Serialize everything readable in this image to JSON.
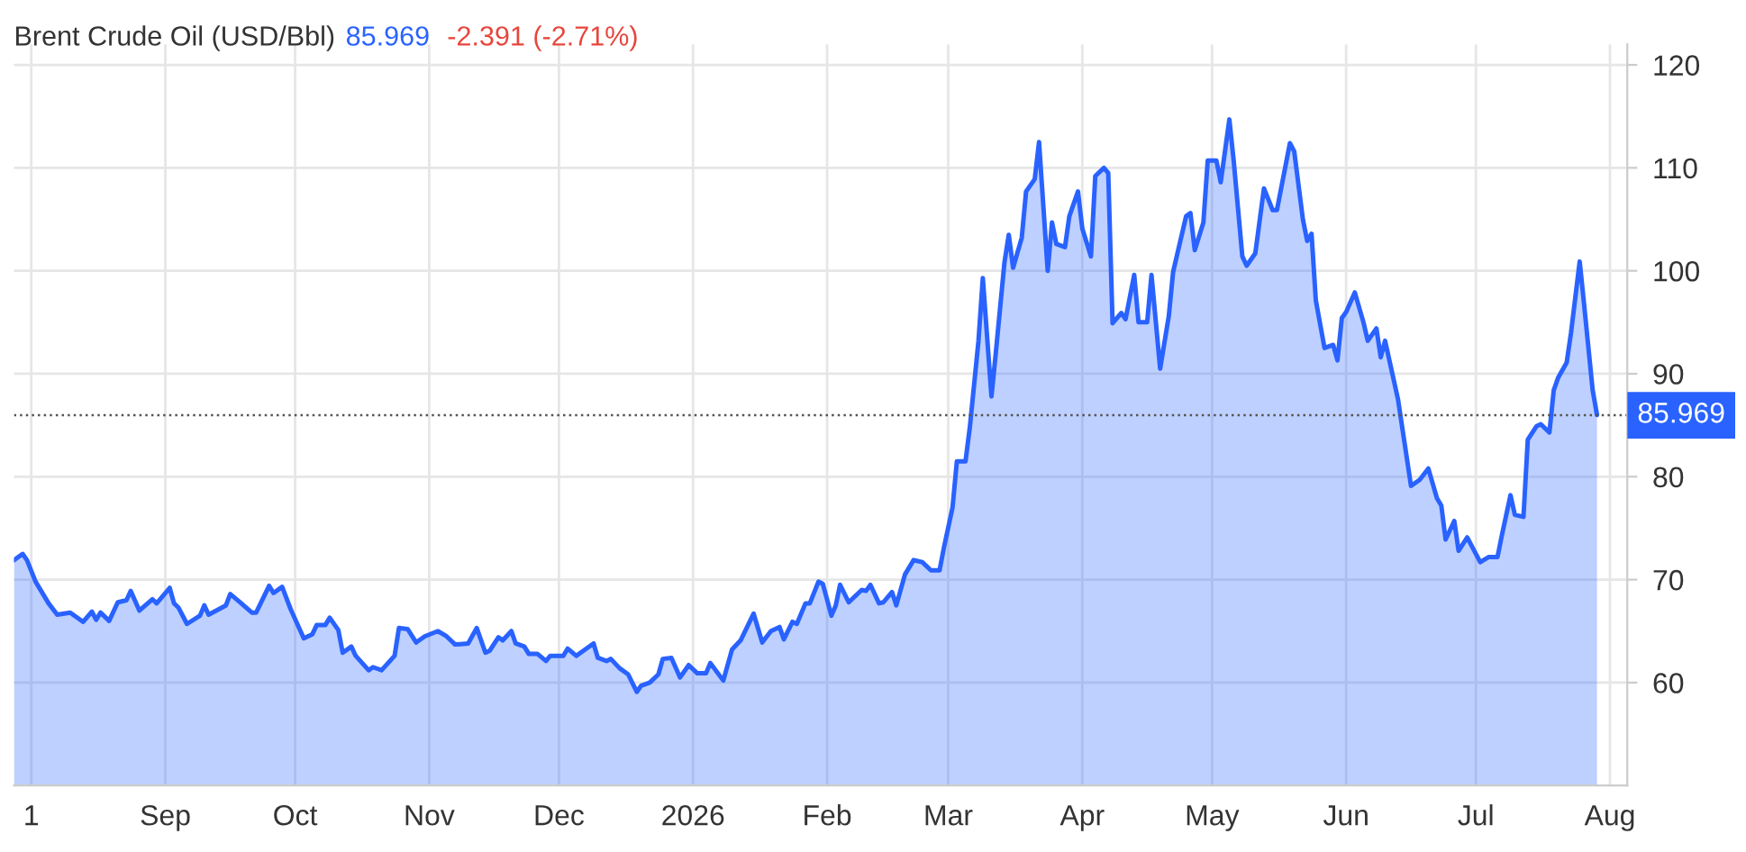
{
  "chart_data": {
    "type": "area",
    "title": "Brent Crude Oil (USD/Bbl)",
    "annotations": [
      "85.969",
      "-2.391 (-2.71%)"
    ],
    "x": [
      "2025-07-28",
      "2025-07-30",
      "2025-07-31",
      "2025-08-02",
      "2025-08-05",
      "2025-08-07",
      "2025-08-10",
      "2025-08-13",
      "2025-08-15",
      "2025-08-16",
      "2025-08-17",
      "2025-08-19",
      "2025-08-21",
      "2025-08-23",
      "2025-08-24",
      "2025-08-26",
      "2025-08-29",
      "2025-08-30",
      "2025-09-02",
      "2025-09-03",
      "2025-09-04",
      "2025-09-06",
      "2025-09-09",
      "2025-09-10",
      "2025-09-11",
      "2025-09-15",
      "2025-09-16",
      "2025-09-18",
      "2025-09-21",
      "2025-09-22",
      "2025-09-25",
      "2025-09-26",
      "2025-09-28",
      "2025-09-30",
      "2025-10-03",
      "2025-10-05",
      "2025-10-06",
      "2025-10-08",
      "2025-10-09",
      "2025-10-11",
      "2025-10-12",
      "2025-10-14",
      "2025-10-15",
      "2025-10-18",
      "2025-10-19",
      "2025-10-21",
      "2025-10-24",
      "2025-10-25",
      "2025-10-27",
      "2025-10-29",
      "2025-10-31",
      "2025-11-03",
      "2025-11-05",
      "2025-11-07",
      "2025-11-10",
      "2025-11-12",
      "2025-11-14",
      "2025-11-15",
      "2025-11-17",
      "2025-11-18",
      "2025-11-20",
      "2025-11-21",
      "2025-11-23",
      "2025-11-24",
      "2025-11-26",
      "2025-11-28",
      "2025-11-29",
      "2025-12-02",
      "2025-12-03",
      "2025-12-05",
      "2025-12-06",
      "2025-12-09",
      "2025-12-10",
      "2025-12-12",
      "2025-12-13",
      "2025-12-15",
      "2025-12-17",
      "2025-12-19",
      "2025-12-20",
      "2025-12-22",
      "2025-12-24",
      "2025-12-25",
      "2025-12-27",
      "2025-12-29",
      "2025-12-31",
      "2026-01-02",
      "2026-01-04",
      "2026-01-05",
      "2026-01-08",
      "2026-01-10",
      "2026-01-12",
      "2026-01-15",
      "2026-01-17",
      "2026-01-19",
      "2026-01-21",
      "2026-01-22",
      "2026-01-24",
      "2026-01-25",
      "2026-01-27",
      "2026-01-28",
      "2026-01-30",
      "2026-01-31",
      "2026-02-02",
      "2026-02-03",
      "2026-02-04",
      "2026-02-06",
      "2026-02-09",
      "2026-02-10",
      "2026-02-11",
      "2026-02-13",
      "2026-02-14",
      "2026-02-16",
      "2026-02-17",
      "2026-02-19",
      "2026-02-21",
      "2026-02-23",
      "2026-02-25",
      "2026-02-27",
      "2026-02-28",
      "2026-03-02",
      "2026-03-03",
      "2026-03-05",
      "2026-03-06",
      "2026-03-08",
      "2026-03-09",
      "2026-03-11",
      "2026-03-12",
      "2026-03-14",
      "2026-03-15",
      "2026-03-16",
      "2026-03-18",
      "2026-03-19",
      "2026-03-21",
      "2026-03-22",
      "2026-03-24",
      "2026-03-25",
      "2026-03-26",
      "2026-03-28",
      "2026-03-29",
      "2026-03-31",
      "2026-04-01",
      "2026-04-03",
      "2026-04-04",
      "2026-04-06",
      "2026-04-07",
      "2026-04-08",
      "2026-04-10",
      "2026-04-11",
      "2026-04-13",
      "2026-04-14",
      "2026-04-16",
      "2026-04-17",
      "2026-04-19",
      "2026-04-21",
      "2026-04-22",
      "2026-04-25",
      "2026-04-26",
      "2026-04-27",
      "2026-04-29",
      "2026-04-30",
      "2026-05-02",
      "2026-05-03",
      "2026-05-05",
      "2026-05-06",
      "2026-05-08",
      "2026-05-09",
      "2026-05-11",
      "2026-05-13",
      "2026-05-15",
      "2026-05-16",
      "2026-05-19",
      "2026-05-20",
      "2026-05-22",
      "2026-05-23",
      "2026-05-24",
      "2026-05-25",
      "2026-05-27",
      "2026-05-29",
      "2026-05-30",
      "2026-05-31",
      "2026-06-01",
      "2026-06-03",
      "2026-06-05",
      "2026-06-06",
      "2026-06-08",
      "2026-06-09",
      "2026-06-10",
      "2026-06-13",
      "2026-06-16",
      "2026-06-18",
      "2026-06-20",
      "2026-06-22",
      "2026-06-23",
      "2026-06-24",
      "2026-06-26",
      "2026-06-27",
      "2026-06-29",
      "2026-06-30",
      "2026-07-02",
      "2026-07-04",
      "2026-07-06",
      "2026-07-07",
      "2026-07-09",
      "2026-07-10",
      "2026-07-12",
      "2026-07-13",
      "2026-07-15",
      "2026-07-16",
      "2026-07-18",
      "2026-07-19",
      "2026-07-20",
      "2026-07-22",
      "2026-07-23",
      "2026-07-25",
      "2026-07-26",
      "2026-07-28",
      "2026-07-29"
    ],
    "series": [
      {
        "color": "#2962ff",
        "values": [
          71.9,
          72.5,
          71.9,
          69.8,
          67.7,
          66.6,
          66.8,
          65.9,
          66.9,
          66.1,
          66.8,
          66.0,
          67.8,
          68.0,
          68.9,
          67.0,
          68.1,
          67.7,
          69.2,
          67.7,
          67.3,
          65.7,
          66.5,
          67.5,
          66.6,
          67.5,
          68.6,
          67.9,
          66.8,
          66.8,
          69.4,
          68.7,
          69.3,
          67.1,
          64.3,
          64.7,
          65.6,
          65.6,
          66.3,
          65.1,
          62.9,
          63.5,
          62.6,
          61.2,
          61.5,
          61.2,
          62.6,
          65.3,
          65.2,
          63.9,
          64.5,
          65.0,
          64.5,
          63.7,
          63.8,
          65.3,
          62.9,
          63.1,
          64.4,
          64.1,
          65.0,
          63.8,
          63.5,
          62.8,
          62.8,
          62.1,
          62.6,
          62.6,
          63.3,
          62.6,
          62.9,
          63.8,
          62.4,
          62.1,
          62.3,
          61.4,
          60.8,
          59.1,
          59.7,
          60.0,
          60.8,
          62.3,
          62.4,
          60.5,
          61.7,
          60.9,
          60.9,
          61.9,
          60.2,
          63.2,
          64.1,
          66.7,
          63.9,
          65.0,
          65.4,
          64.2,
          65.9,
          65.7,
          67.7,
          67.7,
          69.8,
          69.6,
          66.5,
          67.5,
          69.5,
          67.8,
          69.0,
          68.9,
          69.5,
          67.7,
          67.8,
          68.8,
          67.5,
          70.5,
          71.9,
          71.7,
          70.9,
          70.9,
          73.1,
          77.0,
          81.5,
          81.5,
          84.8,
          93.2,
          99.3,
          87.8,
          92.0,
          100.8,
          103.5,
          100.3,
          103.2,
          107.7,
          108.9,
          112.5,
          100.0,
          104.7,
          102.6,
          102.3,
          105.3,
          107.7,
          104.1,
          101.4,
          109.2,
          110.0,
          109.5,
          94.9,
          95.9,
          95.3,
          99.6,
          95.0,
          95.0,
          99.6,
          90.5,
          95.6,
          99.9,
          105.3,
          105.6,
          102.0,
          104.7,
          110.7,
          110.7,
          108.6,
          114.7,
          110.7,
          101.4,
          100.5,
          101.7,
          108.0,
          105.9,
          105.9,
          112.4,
          111.6,
          105.0,
          102.9,
          103.6,
          97.1,
          92.5,
          92.8,
          91.3,
          95.4,
          96.0,
          97.9,
          95.0,
          93.2,
          94.4,
          91.6,
          93.2,
          87.5,
          79.1,
          79.7,
          80.8,
          77.9,
          77.2,
          73.9,
          75.7,
          72.8,
          74.1,
          73.3,
          71.7,
          72.2,
          72.2,
          74.3,
          78.2,
          76.3,
          76.1,
          83.6,
          84.9,
          85.1,
          84.3,
          88.4,
          89.6,
          91.1,
          94.0,
          100.9,
          96.8,
          88.4,
          86.0
        ]
      }
    ],
    "xlim": [
      "2025-07-28",
      "2026-08-05"
    ],
    "xticks": [
      {
        "value": "2025-08-01",
        "label": "1"
      },
      {
        "value": "2025-09-01",
        "label": "Sep"
      },
      {
        "value": "2025-10-01",
        "label": "Oct"
      },
      {
        "value": "2025-11-01",
        "label": "Nov"
      },
      {
        "value": "2025-12-01",
        "label": "Dec"
      },
      {
        "value": "2026-01-01",
        "label": "2026"
      },
      {
        "value": "2026-02-01",
        "label": "Feb"
      },
      {
        "value": "2026-03-01",
        "label": "Mar"
      },
      {
        "value": "2026-04-01",
        "label": "Apr"
      },
      {
        "value": "2026-05-01",
        "label": "May"
      },
      {
        "value": "2026-06-01",
        "label": "Jun"
      },
      {
        "value": "2026-07-01",
        "label": "Jul"
      },
      {
        "value": "2026-08-01",
        "label": "Aug"
      }
    ],
    "ylim": [
      50,
      122
    ],
    "yticks": [
      60,
      70,
      80,
      90,
      100,
      110,
      120
    ],
    "ref_lines": [
      {
        "axis": "y",
        "value": 85.969,
        "label": "85.969",
        "color": "#555555",
        "line_style": "dotted"
      }
    ],
    "grid": true
  }
}
